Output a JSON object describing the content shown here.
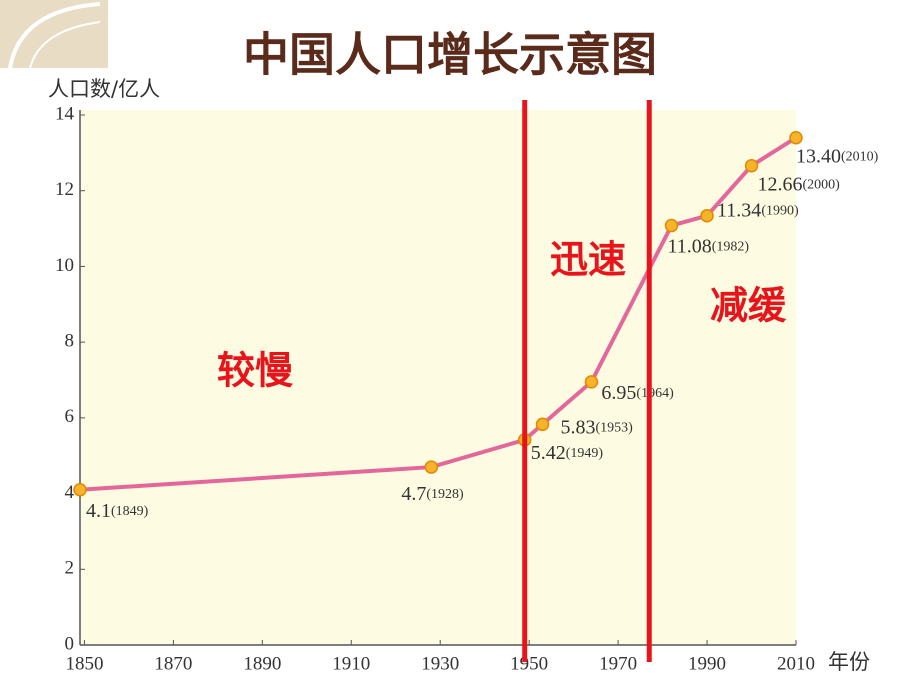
{
  "chart_data": {
    "type": "line",
    "title": "中国人口增长示意图",
    "y_label": "人口数/亿人",
    "x_label": "年份",
    "x": [
      1849,
      1928,
      1949,
      1953,
      1964,
      1982,
      1990,
      2000,
      2010
    ],
    "series": [
      {
        "color": "#e3679b",
        "values": [
          4.1,
          4.7,
          5.42,
          5.83,
          6.95,
          11.08,
          11.34,
          12.66,
          13.4
        ],
        "value_labels": [
          "4.1",
          "4.7",
          "5.42",
          "5.83",
          "6.95",
          "11.08",
          "11.34",
          "12.66",
          "13.40"
        ],
        "year_labels": [
          "(1849)",
          "(1928)",
          "(1949)",
          "(1953)",
          "(1964)",
          "(1982)",
          "(1990)",
          "(2000)",
          "(2010)"
        ]
      }
    ],
    "xlim": [
      1849,
      2010
    ],
    "xticks": [
      1850,
      1870,
      1890,
      1910,
      1930,
      1950,
      1970,
      1990,
      2010
    ],
    "ylim": [
      0,
      14
    ],
    "yticks": [
      0,
      2,
      4,
      6,
      8,
      10,
      12,
      14
    ],
    "dividers": {
      "color": "#e8141b",
      "x": [
        1949,
        1977
      ]
    },
    "annotations": [
      "较慢",
      "迅速",
      "减缓"
    ]
  }
}
